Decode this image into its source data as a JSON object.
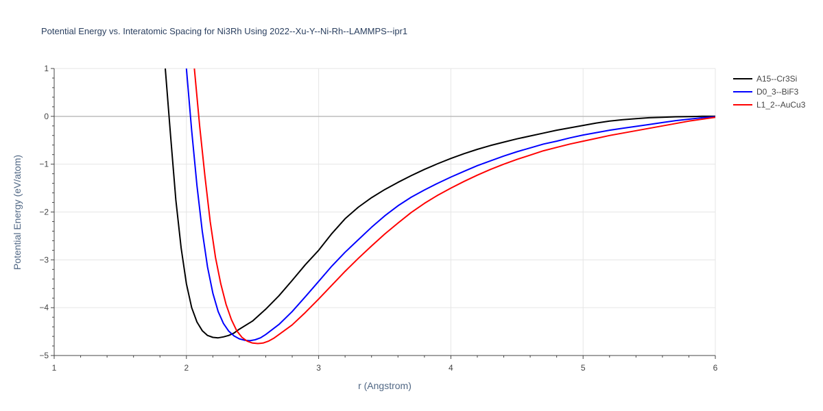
{
  "chart_data": {
    "type": "line",
    "title": "Potential Energy vs. Interatomic Spacing for Ni3Rh Using 2022--Xu-Y--Ni-Rh--LAMMPS--ipr1",
    "xlabel": "r (Angstrom)",
    "ylabel": "Potential Energy (eV/atom)",
    "xlim": [
      1,
      6
    ],
    "ylim": [
      -5,
      1
    ],
    "xticks": [
      1,
      2,
      3,
      4,
      5,
      6
    ],
    "xtick_labels": [
      "1",
      "2",
      "3",
      "4",
      "5",
      "6"
    ],
    "yticks": [
      1,
      0,
      -1,
      -2,
      -3,
      -4,
      -5
    ],
    "ytick_labels": [
      "1",
      "0",
      "−1",
      "−2",
      "−3",
      "−4",
      "−5"
    ],
    "grid": true,
    "legend_position": "top-right",
    "series": [
      {
        "name": "A15--Cr3Si",
        "color": "#000000",
        "x": [
          1.84,
          1.88,
          1.92,
          1.96,
          2.0,
          2.04,
          2.08,
          2.12,
          2.16,
          2.2,
          2.24,
          2.28,
          2.32,
          2.36,
          2.4,
          2.5,
          2.6,
          2.7,
          2.8,
          2.9,
          3.0,
          3.1,
          3.2,
          3.3,
          3.4,
          3.5,
          3.6,
          3.7,
          3.8,
          3.9,
          4.0,
          4.1,
          4.2,
          4.3,
          4.4,
          4.5,
          4.6,
          4.7,
          4.8,
          4.9,
          5.0,
          5.1,
          5.2,
          5.3,
          5.4,
          5.5,
          5.6,
          5.7,
          5.8,
          5.9,
          6.0
        ],
        "y": [
          1.0,
          -0.4,
          -1.75,
          -2.75,
          -3.5,
          -4.0,
          -4.3,
          -4.48,
          -4.58,
          -4.62,
          -4.63,
          -4.61,
          -4.58,
          -4.53,
          -4.45,
          -4.28,
          -4.03,
          -3.75,
          -3.43,
          -3.1,
          -2.8,
          -2.45,
          -2.14,
          -1.9,
          -1.7,
          -1.53,
          -1.38,
          -1.24,
          -1.11,
          -0.99,
          -0.88,
          -0.78,
          -0.69,
          -0.61,
          -0.54,
          -0.47,
          -0.41,
          -0.35,
          -0.29,
          -0.24,
          -0.19,
          -0.14,
          -0.1,
          -0.07,
          -0.05,
          -0.03,
          -0.02,
          -0.01,
          -0.005,
          0.0,
          0.0
        ]
      },
      {
        "name": "D0_3--BiF3",
        "color": "#0000ff",
        "x": [
          2.0,
          2.04,
          2.08,
          2.12,
          2.16,
          2.2,
          2.24,
          2.28,
          2.32,
          2.36,
          2.4,
          2.44,
          2.48,
          2.52,
          2.56,
          2.6,
          2.7,
          2.8,
          2.9,
          3.0,
          3.1,
          3.2,
          3.3,
          3.4,
          3.5,
          3.6,
          3.7,
          3.8,
          3.9,
          4.0,
          4.1,
          4.2,
          4.3,
          4.4,
          4.5,
          4.6,
          4.7,
          4.8,
          4.9,
          5.0,
          5.1,
          5.2,
          5.3,
          5.4,
          5.5,
          5.6,
          5.7,
          5.8,
          5.9,
          6.0
        ],
        "y": [
          1.0,
          -0.3,
          -1.45,
          -2.4,
          -3.15,
          -3.7,
          -4.08,
          -4.33,
          -4.49,
          -4.59,
          -4.65,
          -4.68,
          -4.69,
          -4.67,
          -4.63,
          -4.56,
          -4.35,
          -4.08,
          -3.77,
          -3.45,
          -3.13,
          -2.84,
          -2.58,
          -2.32,
          -2.08,
          -1.87,
          -1.69,
          -1.54,
          -1.4,
          -1.27,
          -1.15,
          -1.03,
          -0.93,
          -0.83,
          -0.74,
          -0.66,
          -0.58,
          -0.52,
          -0.45,
          -0.39,
          -0.34,
          -0.29,
          -0.25,
          -0.21,
          -0.17,
          -0.13,
          -0.09,
          -0.06,
          -0.03,
          -0.01
        ]
      },
      {
        "name": "L1_2--AuCu3",
        "color": "#ff0000",
        "x": [
          2.06,
          2.1,
          2.14,
          2.18,
          2.22,
          2.26,
          2.3,
          2.34,
          2.38,
          2.42,
          2.46,
          2.5,
          2.54,
          2.58,
          2.62,
          2.66,
          2.7,
          2.8,
          2.9,
          3.0,
          3.1,
          3.2,
          3.3,
          3.4,
          3.5,
          3.6,
          3.7,
          3.8,
          3.9,
          4.0,
          4.1,
          4.2,
          4.3,
          4.4,
          4.5,
          4.6,
          4.7,
          4.8,
          4.9,
          5.0,
          5.1,
          5.2,
          5.3,
          5.4,
          5.5,
          5.6,
          5.7,
          5.8,
          5.9,
          6.0
        ],
        "y": [
          1.0,
          -0.2,
          -1.25,
          -2.2,
          -2.95,
          -3.5,
          -3.93,
          -4.25,
          -4.48,
          -4.62,
          -4.7,
          -4.74,
          -4.75,
          -4.74,
          -4.7,
          -4.64,
          -4.56,
          -4.36,
          -4.1,
          -3.82,
          -3.53,
          -3.24,
          -2.97,
          -2.71,
          -2.46,
          -2.23,
          -2.01,
          -1.82,
          -1.65,
          -1.5,
          -1.36,
          -1.23,
          -1.11,
          -1.0,
          -0.9,
          -0.81,
          -0.72,
          -0.65,
          -0.58,
          -0.52,
          -0.46,
          -0.4,
          -0.35,
          -0.3,
          -0.25,
          -0.2,
          -0.15,
          -0.1,
          -0.06,
          -0.02
        ]
      }
    ]
  }
}
